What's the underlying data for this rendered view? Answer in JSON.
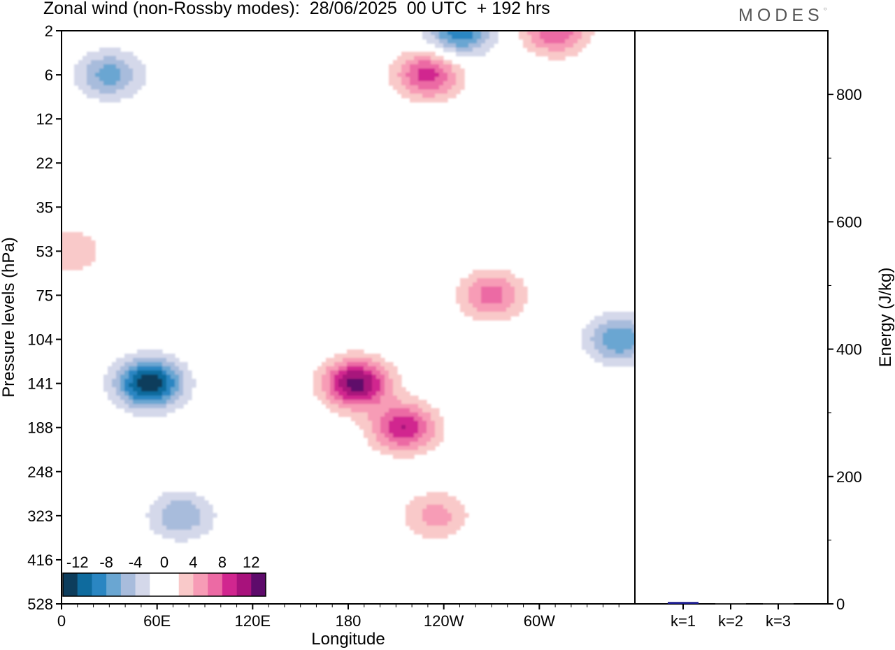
{
  "title": "Zonal wind (non-Rossby modes):  28/06/2025  00 UTC  + 192 hrs",
  "logo": "MODES",
  "chart_data": [
    {
      "type": "heatmap",
      "title": "Zonal wind (non-Rossby modes):  28/06/2025  00 UTC  + 192 hrs",
      "xlabel": "Longitude",
      "ylabel": "Pressure levels (hPa)",
      "x_ticks": [
        "0",
        "60E",
        "120E",
        "180",
        "120W",
        "60W"
      ],
      "y_ticks": [
        "2",
        "6",
        "12",
        "22",
        "35",
        "53",
        "75",
        "104",
        "141",
        "188",
        "248",
        "323",
        "416",
        "528"
      ],
      "colorbar": {
        "labels": [
          "-12",
          "-8",
          "-4",
          "0",
          "4",
          "8",
          "12"
        ],
        "levels": [
          -14,
          -12,
          -10,
          -8,
          -6,
          -4,
          -2,
          0,
          2,
          4,
          6,
          8,
          10,
          12,
          14
        ],
        "colors": [
          "#0d3d5c",
          "#0f6b9e",
          "#2a86c2",
          "#6aa6d2",
          "#a8bcdc",
          "#d4d8ea",
          "#ffffff",
          "#ffffff",
          "#f9c9c9",
          "#f79cb6",
          "#ec6aa4",
          "#d1268f",
          "#a8127c",
          "#5e0b6b"
        ]
      },
      "features": [
        {
          "lon": 30,
          "level": "6",
          "value": -7
        },
        {
          "lon": 310,
          "level": "2",
          "value": 8
        },
        {
          "lon": 250,
          "level": "2",
          "value": -10
        },
        {
          "lon": 230,
          "level": "6",
          "value": 9
        },
        {
          "lon": 5,
          "level": "53",
          "value": 4
        },
        {
          "lon": 55,
          "level": "141",
          "value": -14
        },
        {
          "lon": 75,
          "level": "323",
          "value": -6
        },
        {
          "lon": 185,
          "level": "141",
          "value": 13
        },
        {
          "lon": 215,
          "level": "188",
          "value": 10
        },
        {
          "lon": 270,
          "level": "75",
          "value": 7
        },
        {
          "lon": 350,
          "level": "104",
          "value": -8
        },
        {
          "lon": 235,
          "level": "323",
          "value": 5
        }
      ]
    },
    {
      "type": "bar",
      "ylabel": "Energy (J/kg)",
      "categories": [
        "k=1",
        "k=2",
        "k=3"
      ],
      "values": [
        3,
        1,
        1
      ],
      "ylim": [
        0,
        900
      ],
      "y_ticks": [
        0,
        200,
        400,
        600,
        800
      ],
      "bar_colors": [
        "#1a1a8c",
        "#333333",
        "#333333"
      ]
    }
  ]
}
